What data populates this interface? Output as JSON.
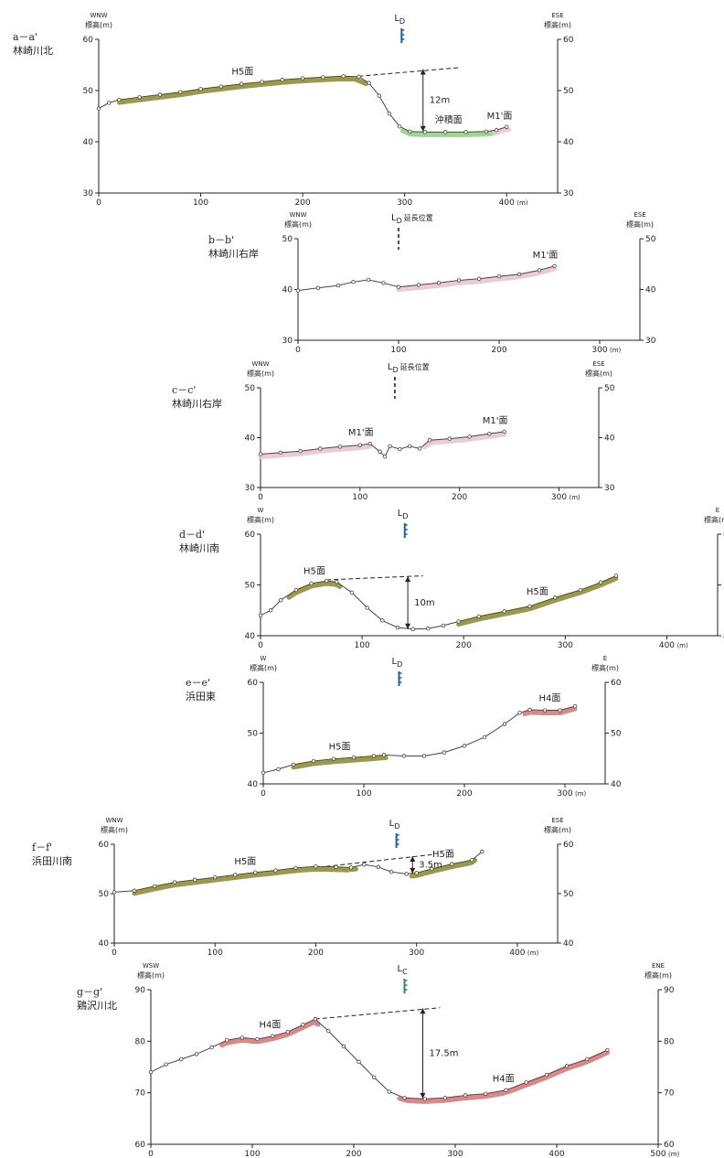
{
  "common": {
    "elevation_label": "標高(m)",
    "x_unit": "(m)"
  },
  "colors": {
    "H5": "#8f8f33",
    "H4": "#d97a7a",
    "M1": "#e8c6d0",
    "alluvial": "#8fd47f",
    "profile_line": "#444444",
    "LD": "#1f5fa0",
    "LC": "#2e8b57"
  },
  "chart_data": [
    {
      "type": "line",
      "id": "a",
      "label": "a－a'",
      "name": "林崎川北",
      "dir_left": "WNW",
      "dir_right": "ESE",
      "xlim": [
        0,
        450
      ],
      "ylim": [
        30,
        60
      ],
      "xticks": [
        0,
        100,
        200,
        300,
        400
      ],
      "yticks": [
        30,
        40,
        50,
        60
      ],
      "profile": [
        [
          0,
          46.5
        ],
        [
          10,
          47.6
        ],
        [
          20,
          48.2
        ],
        [
          40,
          48.7
        ],
        [
          60,
          49.2
        ],
        [
          80,
          49.7
        ],
        [
          100,
          50.3
        ],
        [
          120,
          50.8
        ],
        [
          140,
          51.3
        ],
        [
          160,
          51.7
        ],
        [
          180,
          52.1
        ],
        [
          200,
          52.4
        ],
        [
          220,
          52.6
        ],
        [
          240,
          52.8
        ],
        [
          255,
          52.7
        ],
        [
          265,
          51.5
        ],
        [
          275,
          49
        ],
        [
          285,
          45.5
        ],
        [
          295,
          43
        ],
        [
          305,
          42
        ],
        [
          320,
          41.9
        ],
        [
          340,
          41.9
        ],
        [
          360,
          41.9
        ],
        [
          380,
          42
        ],
        [
          390,
          42.3
        ],
        [
          400,
          42.9
        ]
      ],
      "surfaces": [
        {
          "label": "H5面",
          "kind": "H5",
          "from": 20,
          "to": 262
        },
        {
          "label": "沖積面",
          "kind": "alluvial",
          "from": 298,
          "to": 388
        },
        {
          "label": "M1'面",
          "kind": "M1",
          "from": 388,
          "to": 402
        }
      ],
      "ref_line": [
        [
          255,
          52.8
        ],
        [
          355,
          54.5
        ]
      ],
      "measure": {
        "label": "12m",
        "x": 318,
        "y_top": 54.2,
        "y_bottom": 42
      },
      "marker": {
        "label": "L",
        "sub": "D",
        "x": 297
      }
    },
    {
      "type": "line",
      "id": "b",
      "label": "b－b'",
      "name": "林崎川右岸",
      "dir_left": "WNW",
      "dir_right": "ESE",
      "xlim": [
        0,
        340
      ],
      "ylim": [
        30,
        50
      ],
      "xticks": [
        0,
        100,
        200,
        300
      ],
      "yticks": [
        30,
        40,
        50
      ],
      "profile": [
        [
          0,
          39.8
        ],
        [
          20,
          40.3
        ],
        [
          40,
          40.8
        ],
        [
          55,
          41.5
        ],
        [
          70,
          41.9
        ],
        [
          85,
          41.3
        ],
        [
          100,
          40.5
        ],
        [
          120,
          40.9
        ],
        [
          140,
          41.3
        ],
        [
          160,
          41.8
        ],
        [
          180,
          42.1
        ],
        [
          200,
          42.6
        ],
        [
          220,
          43
        ],
        [
          240,
          43.8
        ],
        [
          255,
          44.6
        ]
      ],
      "surfaces": [
        {
          "label": "M1'面",
          "kind": "M1",
          "from": 100,
          "to": 255
        }
      ],
      "marker": {
        "label": "L",
        "sub": "D",
        "note": "延長位置",
        "x": 100
      }
    },
    {
      "type": "line",
      "id": "c",
      "label": "c－c'",
      "name": "林崎川右岸",
      "dir_left": "WNW",
      "dir_right": "ESE",
      "xlim": [
        0,
        340
      ],
      "ylim": [
        30,
        50
      ],
      "xticks": [
        0,
        100,
        200,
        300
      ],
      "yticks": [
        30,
        40,
        50
      ],
      "profile": [
        [
          0,
          36.7
        ],
        [
          20,
          37
        ],
        [
          40,
          37.3
        ],
        [
          60,
          37.8
        ],
        [
          80,
          38.2
        ],
        [
          100,
          38.5
        ],
        [
          110,
          38.8
        ],
        [
          120,
          37.2
        ],
        [
          125,
          36.2
        ],
        [
          130,
          38.3
        ],
        [
          140,
          37.7
        ],
        [
          150,
          38.3
        ],
        [
          160,
          37.8
        ],
        [
          170,
          39.5
        ],
        [
          190,
          39.8
        ],
        [
          210,
          40.2
        ],
        [
          230,
          40.8
        ],
        [
          245,
          41.2
        ]
      ],
      "surfaces": [
        {
          "label": "M1'面",
          "kind": "M1",
          "from": 0,
          "to": 110
        },
        {
          "label": "M1'面",
          "kind": "M1",
          "from": 165,
          "to": 245
        }
      ],
      "marker": {
        "label": "L",
        "sub": "D",
        "note": "延長位置",
        "x": 135
      }
    },
    {
      "type": "line",
      "id": "d",
      "label": "d－d'",
      "name": "林崎川南",
      "dir_left": "W",
      "dir_right": "E",
      "xlim": [
        0,
        450
      ],
      "ylim": [
        40,
        60
      ],
      "xticks": [
        0,
        100,
        200,
        300,
        400
      ],
      "yticks": [
        40,
        50,
        60
      ],
      "profile": [
        [
          0,
          44
        ],
        [
          10,
          45
        ],
        [
          20,
          47
        ],
        [
          35,
          49
        ],
        [
          50,
          50.3
        ],
        [
          65,
          50.8
        ],
        [
          75,
          50.6
        ],
        [
          90,
          48.5
        ],
        [
          105,
          45.5
        ],
        [
          120,
          43
        ],
        [
          135,
          41.6
        ],
        [
          150,
          41.3
        ],
        [
          165,
          41.4
        ],
        [
          180,
          42
        ],
        [
          195,
          42.8
        ],
        [
          215,
          43.8
        ],
        [
          240,
          44.8
        ],
        [
          265,
          45.8
        ],
        [
          290,
          47.5
        ],
        [
          315,
          49
        ],
        [
          335,
          50.5
        ],
        [
          350,
          51.8
        ]
      ],
      "surfaces": [
        {
          "label": "H5面",
          "kind": "H5",
          "from": 28,
          "to": 78
        },
        {
          "label": "H5面",
          "kind": "H5",
          "from": 195,
          "to": 350
        }
      ],
      "ref_line": [
        [
          65,
          51
        ],
        [
          160,
          51.8
        ]
      ],
      "measure": {
        "label": "10m",
        "x": 145,
        "y_top": 51.7,
        "y_bottom": 41.3
      },
      "marker": {
        "label": "L",
        "sub": "D",
        "x": 142
      }
    },
    {
      "type": "line",
      "id": "e",
      "label": "e－e'",
      "name": "浜田東",
      "dir_left": "W",
      "dir_right": "E",
      "xlim": [
        0,
        340
      ],
      "ylim": [
        40,
        60
      ],
      "xticks": [
        0,
        100,
        200,
        300
      ],
      "yticks": [
        40,
        50,
        60
      ],
      "profile": [
        [
          0,
          42.2
        ],
        [
          15,
          42.9
        ],
        [
          30,
          43.8
        ],
        [
          50,
          44.5
        ],
        [
          70,
          44.9
        ],
        [
          90,
          45.2
        ],
        [
          110,
          45.5
        ],
        [
          120,
          45.7
        ],
        [
          140,
          45.5
        ],
        [
          160,
          45.5
        ],
        [
          180,
          46.2
        ],
        [
          200,
          47.5
        ],
        [
          220,
          49.2
        ],
        [
          240,
          51.8
        ],
        [
          255,
          54
        ],
        [
          265,
          54.6
        ],
        [
          280,
          54.5
        ],
        [
          295,
          54.5
        ],
        [
          310,
          55.3
        ]
      ],
      "surfaces": [
        {
          "label": "H5面",
          "kind": "H5",
          "from": 30,
          "to": 122
        },
        {
          "label": "H4面",
          "kind": "H4",
          "from": 260,
          "to": 310
        }
      ],
      "marker": {
        "label": "L",
        "sub": "D",
        "x": 135
      }
    },
    {
      "type": "line",
      "id": "f",
      "label": "f－f'",
      "name": "浜田川南",
      "dir_left": "WNW",
      "dir_right": "ESE",
      "xlim": [
        0,
        440
      ],
      "ylim": [
        40,
        60
      ],
      "xticks": [
        0,
        100,
        200,
        300,
        400
      ],
      "yticks": [
        40,
        50,
        60
      ],
      "profile": [
        [
          0,
          50.3
        ],
        [
          20,
          50.6
        ],
        [
          40,
          51.5
        ],
        [
          60,
          52.3
        ],
        [
          80,
          52.8
        ],
        [
          100,
          53.3
        ],
        [
          120,
          53.8
        ],
        [
          140,
          54.3
        ],
        [
          160,
          54.7
        ],
        [
          180,
          55.2
        ],
        [
          200,
          55.5
        ],
        [
          220,
          55.4
        ],
        [
          235,
          55.3
        ],
        [
          248,
          55.9
        ],
        [
          262,
          55.4
        ],
        [
          275,
          54.4
        ],
        [
          290,
          54
        ],
        [
          300,
          54.2
        ],
        [
          315,
          55
        ],
        [
          335,
          56
        ],
        [
          355,
          56.8
        ],
        [
          365,
          58.5
        ]
      ],
      "surfaces": [
        {
          "label": "H5面",
          "kind": "H5",
          "from": 20,
          "to": 240
        },
        {
          "label": "H5面",
          "kind": "H5",
          "from": 295,
          "to": 358
        }
      ],
      "ref_line": [
        [
          210,
          55.5
        ],
        [
          315,
          57.9
        ]
      ],
      "measure": {
        "label": "3.5m",
        "x": 296,
        "y_top": 57.6,
        "y_bottom": 54.1
      },
      "marker": {
        "label": "L",
        "sub": "D",
        "x": 280
      }
    },
    {
      "type": "line",
      "id": "g",
      "label": "g－g'",
      "name": "鶏沢川北",
      "dir_left": "WSW",
      "dir_right": "ENE",
      "xlim": [
        0,
        500
      ],
      "ylim": [
        60,
        90
      ],
      "xticks": [
        0,
        100,
        200,
        300,
        400,
        500
      ],
      "yticks": [
        60,
        70,
        80,
        90
      ],
      "profile": [
        [
          0,
          74
        ],
        [
          15,
          75.5
        ],
        [
          30,
          76.5
        ],
        [
          45,
          77.5
        ],
        [
          60,
          78.8
        ],
        [
          75,
          80.2
        ],
        [
          90,
          80.7
        ],
        [
          105,
          80.4
        ],
        [
          120,
          81
        ],
        [
          135,
          81.8
        ],
        [
          150,
          83.2
        ],
        [
          162,
          84.3
        ],
        [
          175,
          82
        ],
        [
          190,
          79
        ],
        [
          205,
          76
        ],
        [
          220,
          73
        ],
        [
          235,
          70.2
        ],
        [
          250,
          69
        ],
        [
          270,
          68.8
        ],
        [
          290,
          69
        ],
        [
          310,
          69.5
        ],
        [
          330,
          69.8
        ],
        [
          350,
          70.5
        ],
        [
          370,
          72
        ],
        [
          390,
          73.5
        ],
        [
          410,
          75.2
        ],
        [
          430,
          76.5
        ],
        [
          450,
          78.3
        ]
      ],
      "surfaces": [
        {
          "label": "H4面",
          "kind": "H4",
          "from": 70,
          "to": 165
        },
        {
          "label": "H4面",
          "kind": "H4",
          "from": 245,
          "to": 450
        }
      ],
      "ref_line": [
        [
          162,
          84.3
        ],
        [
          285,
          86.5
        ]
      ],
      "measure": {
        "label": "17.5m",
        "x": 268,
        "y_top": 86.4,
        "y_bottom": 68.9
      },
      "marker": {
        "label": "L",
        "sub": "C",
        "x": 250
      }
    }
  ]
}
